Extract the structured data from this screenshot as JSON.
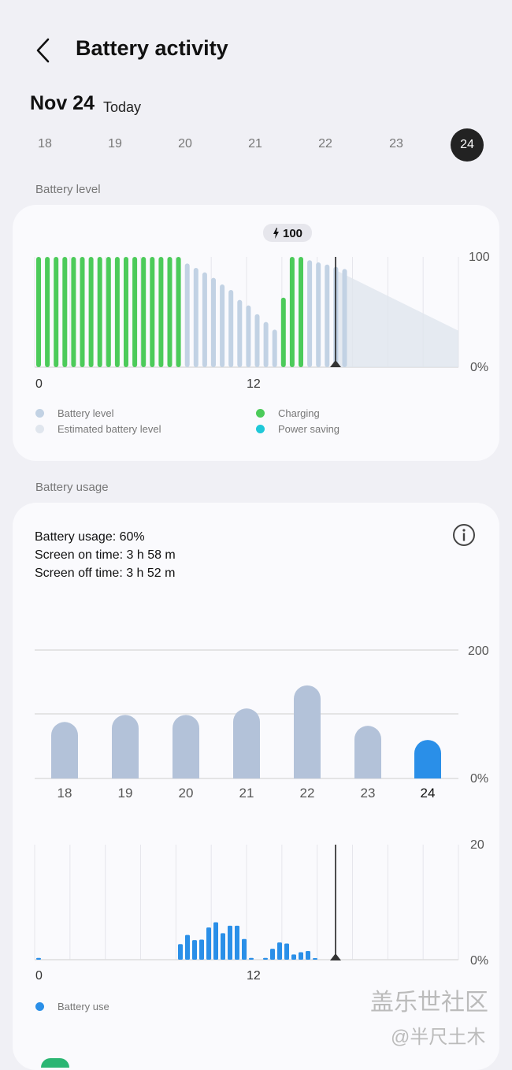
{
  "header": {
    "title": "Battery activity",
    "back_icon": "chevron-left-icon"
  },
  "date": {
    "title": "Nov 24",
    "subtitle": "Today"
  },
  "days": [
    "18",
    "19",
    "20",
    "21",
    "22",
    "23",
    "24"
  ],
  "selected_day": "24",
  "battery_level": {
    "label": "Battery level",
    "peak_label": "100",
    "axis_top": "100",
    "axis_bottom": "0%",
    "x_ticks": [
      "0",
      "12"
    ],
    "legend": [
      {
        "label": "Battery level",
        "color": "#c2d2e4"
      },
      {
        "label": "Estimated battery level",
        "color": "#e0e6ee"
      },
      {
        "label": "Charging",
        "color": "#4ccb5a"
      },
      {
        "label": "Power saving",
        "color": "#1fc8d8"
      }
    ]
  },
  "battery_usage": {
    "label": "Battery usage",
    "usage": "Battery usage: 60%",
    "screen_on": "Screen on time: 3 h 58 m",
    "screen_off": "Screen off time: 3 h 52 m",
    "weekly_axis_top": "200",
    "weekly_axis_bottom": "0%",
    "hourly_axis_top": "20",
    "hourly_axis_bottom": "0%",
    "x_ticks": [
      "0",
      "12"
    ],
    "legend": [
      {
        "label": "Battery use",
        "color": "#2a8fe8"
      }
    ]
  },
  "watermark": {
    "line1": "盖乐世社区",
    "line2": "@半尺土木"
  },
  "colors": {
    "charging": "#4ccb5a",
    "battery": "#c2d2e4",
    "estimated": "#e0e6ee",
    "usage": "#2a8fe8",
    "weekly": "#b3c2d9"
  },
  "chart_data": [
    {
      "type": "bar",
      "title": "",
      "xlabel": "",
      "ylabel": "",
      "ylim": [
        0,
        100
      ],
      "x_ticks": [
        "0",
        "12"
      ],
      "series": [
        {
          "name": "Charging",
          "values": [
            100,
            100,
            100,
            100,
            100,
            100,
            100,
            100,
            100,
            100,
            100,
            100,
            100,
            100,
            100,
            100,
            100,
            0,
            0,
            0,
            0,
            0,
            0,
            0,
            0,
            0,
            0,
            0,
            63,
            100,
            100,
            0,
            0,
            0,
            0,
            0,
            0,
            0
          ]
        },
        {
          "name": "Battery level",
          "values": [
            0,
            0,
            0,
            0,
            0,
            0,
            0,
            0,
            0,
            0,
            0,
            0,
            0,
            0,
            0,
            0,
            0,
            94,
            90,
            86,
            81,
            75,
            70,
            61,
            56,
            48,
            41,
            34,
            0,
            0,
            0,
            97,
            95,
            93,
            91,
            89,
            0,
            0
          ]
        }
      ],
      "estimated": {
        "name": "Estimated battery level",
        "start": 88,
        "end": 33
      }
    },
    {
      "type": "bar",
      "categories": [
        "18",
        "19",
        "20",
        "21",
        "22",
        "23",
        "24"
      ],
      "values": [
        88,
        99,
        99,
        109,
        145,
        82,
        60
      ],
      "ylim": [
        0,
        200
      ]
    },
    {
      "type": "bar",
      "series": [
        {
          "name": "Battery use",
          "values": [
            0.3,
            0,
            0,
            0,
            0,
            0,
            0,
            0,
            0,
            0,
            0,
            0,
            0,
            0,
            0,
            0,
            0,
            0,
            0,
            0,
            2.7,
            4.3,
            3.4,
            3.5,
            5.6,
            6.5,
            4.6,
            5.9,
            5.9,
            3.6,
            0.3,
            0,
            0.3,
            1.9,
            3.0,
            2.8,
            0.9,
            1.3,
            1.5,
            0.2
          ]
        }
      ],
      "ylim": [
        0,
        20
      ],
      "x_ticks": [
        "0",
        "12"
      ]
    }
  ]
}
